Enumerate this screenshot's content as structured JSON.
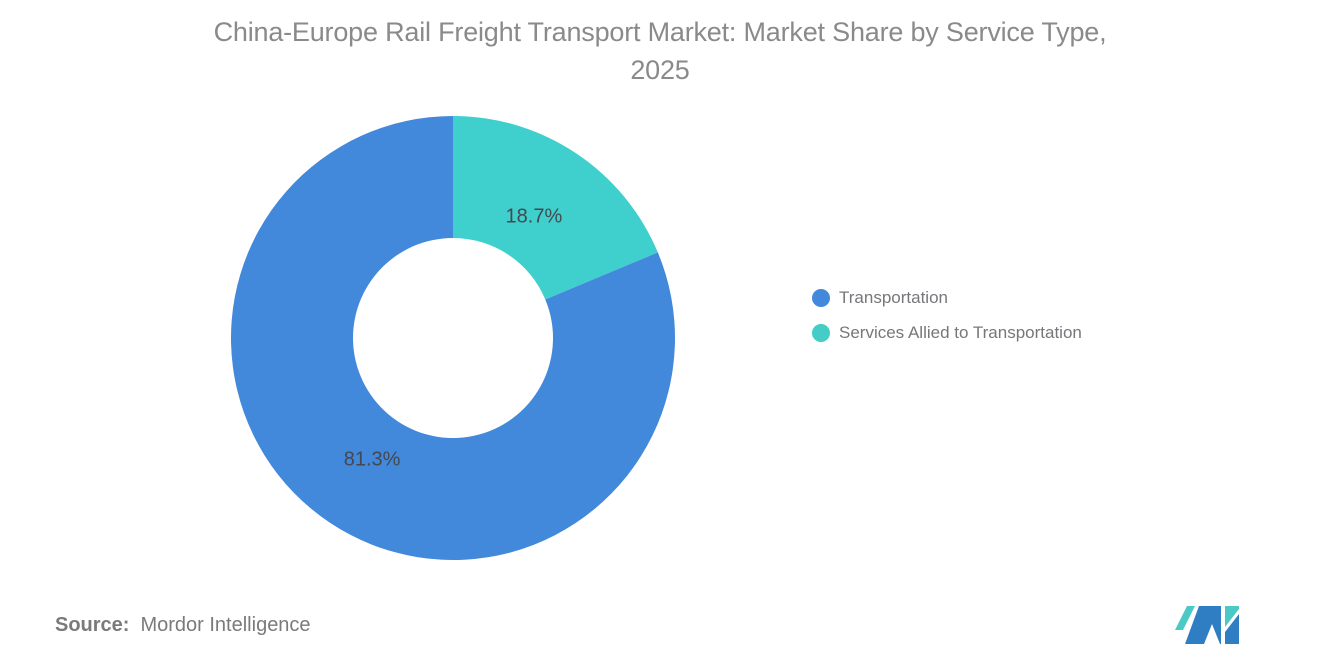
{
  "header": {
    "title_line1": "China-Europe Rail Freight Transport Market: Market Share by Service Type,",
    "title_line2": "2025"
  },
  "chart_data": {
    "type": "pie",
    "subtype": "donut",
    "title": "China-Europe Rail Freight Transport Market: Market Share by Service Type, 2025",
    "unit": "%",
    "inner_radius_ratio": 0.45,
    "legend_position": "right",
    "slices_clockwise_from_top": [
      {
        "label": "Services Allied to Transportation",
        "value": 18.7,
        "color": "#3FD0CE"
      },
      {
        "label": "Transportation",
        "value": 81.3,
        "color": "#4288DB"
      }
    ]
  },
  "legend": {
    "items": [
      {
        "label": "Transportation",
        "color": "#4288DB"
      },
      {
        "label": "Services Allied to Transportation",
        "color": "#44CDC6"
      }
    ]
  },
  "footer": {
    "source_label": "Source:",
    "source_value": "Mordor Intelligence"
  },
  "logo": {
    "name": "Mordor Intelligence logo",
    "blue": "#2F7DC3",
    "teal": "#4AC9C5"
  },
  "colors": {
    "background": "#FFFFFF",
    "title_text": "#8A8A8A",
    "slice_label_text": "#45484F",
    "legend_text": "#76777A",
    "source_text": "#7A7A7A"
  }
}
